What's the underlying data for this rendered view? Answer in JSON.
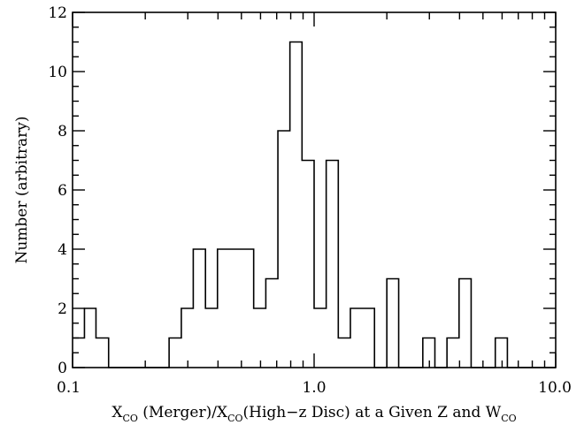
{
  "chart_data": {
    "type": "histogram",
    "title": "",
    "xscale": "log",
    "xlim": [
      0.1,
      10.0
    ],
    "ylim": [
      0,
      12
    ],
    "grid": false,
    "legend": "none",
    "xlabel": {
      "parts": [
        {
          "text": "X",
          "sub": "CO"
        },
        {
          "text": " (Merger)/X",
          "sub": "CO"
        },
        {
          "text": "(High−z Disc) at a Given Z and W",
          "sub": "CO"
        }
      ]
    },
    "ylabel": "Number (arbitrary)",
    "xticks": [
      {
        "value": 0.1,
        "label": "0.1"
      },
      {
        "value": 1.0,
        "label": "1.0"
      },
      {
        "value": 10.0,
        "label": "10.0"
      }
    ],
    "yticks": [
      {
        "value": 0,
        "label": "0"
      },
      {
        "value": 2,
        "label": "2"
      },
      {
        "value": 4,
        "label": "4"
      },
      {
        "value": 6,
        "label": "6"
      },
      {
        "value": 8,
        "label": "8"
      },
      {
        "value": 10,
        "label": "10"
      },
      {
        "value": 12,
        "label": "12"
      }
    ],
    "bin_edges": [
      0.1,
      0.112,
      0.125,
      0.141,
      0.158,
      0.178,
      0.2,
      0.224,
      0.251,
      0.282,
      0.316,
      0.355,
      0.398,
      0.447,
      0.501,
      0.562,
      0.631,
      0.708,
      0.794,
      0.891,
      1.0,
      1.122,
      1.259,
      1.413,
      1.585,
      1.778,
      2.0,
      2.239,
      2.512,
      2.818,
      3.162,
      3.548,
      3.981,
      4.467,
      5.012,
      5.623,
      6.31,
      7.079,
      7.943,
      8.913,
      10.0
    ],
    "counts": [
      1,
      2,
      1,
      0,
      0,
      0,
      0,
      0,
      1,
      2,
      4,
      2,
      4,
      4,
      4,
      2,
      3,
      8,
      11,
      7,
      2,
      7,
      1,
      2,
      2,
      0,
      3,
      0,
      0,
      1,
      0,
      1,
      3,
      0,
      0,
      1,
      0,
      0,
      0,
      0
    ]
  }
}
